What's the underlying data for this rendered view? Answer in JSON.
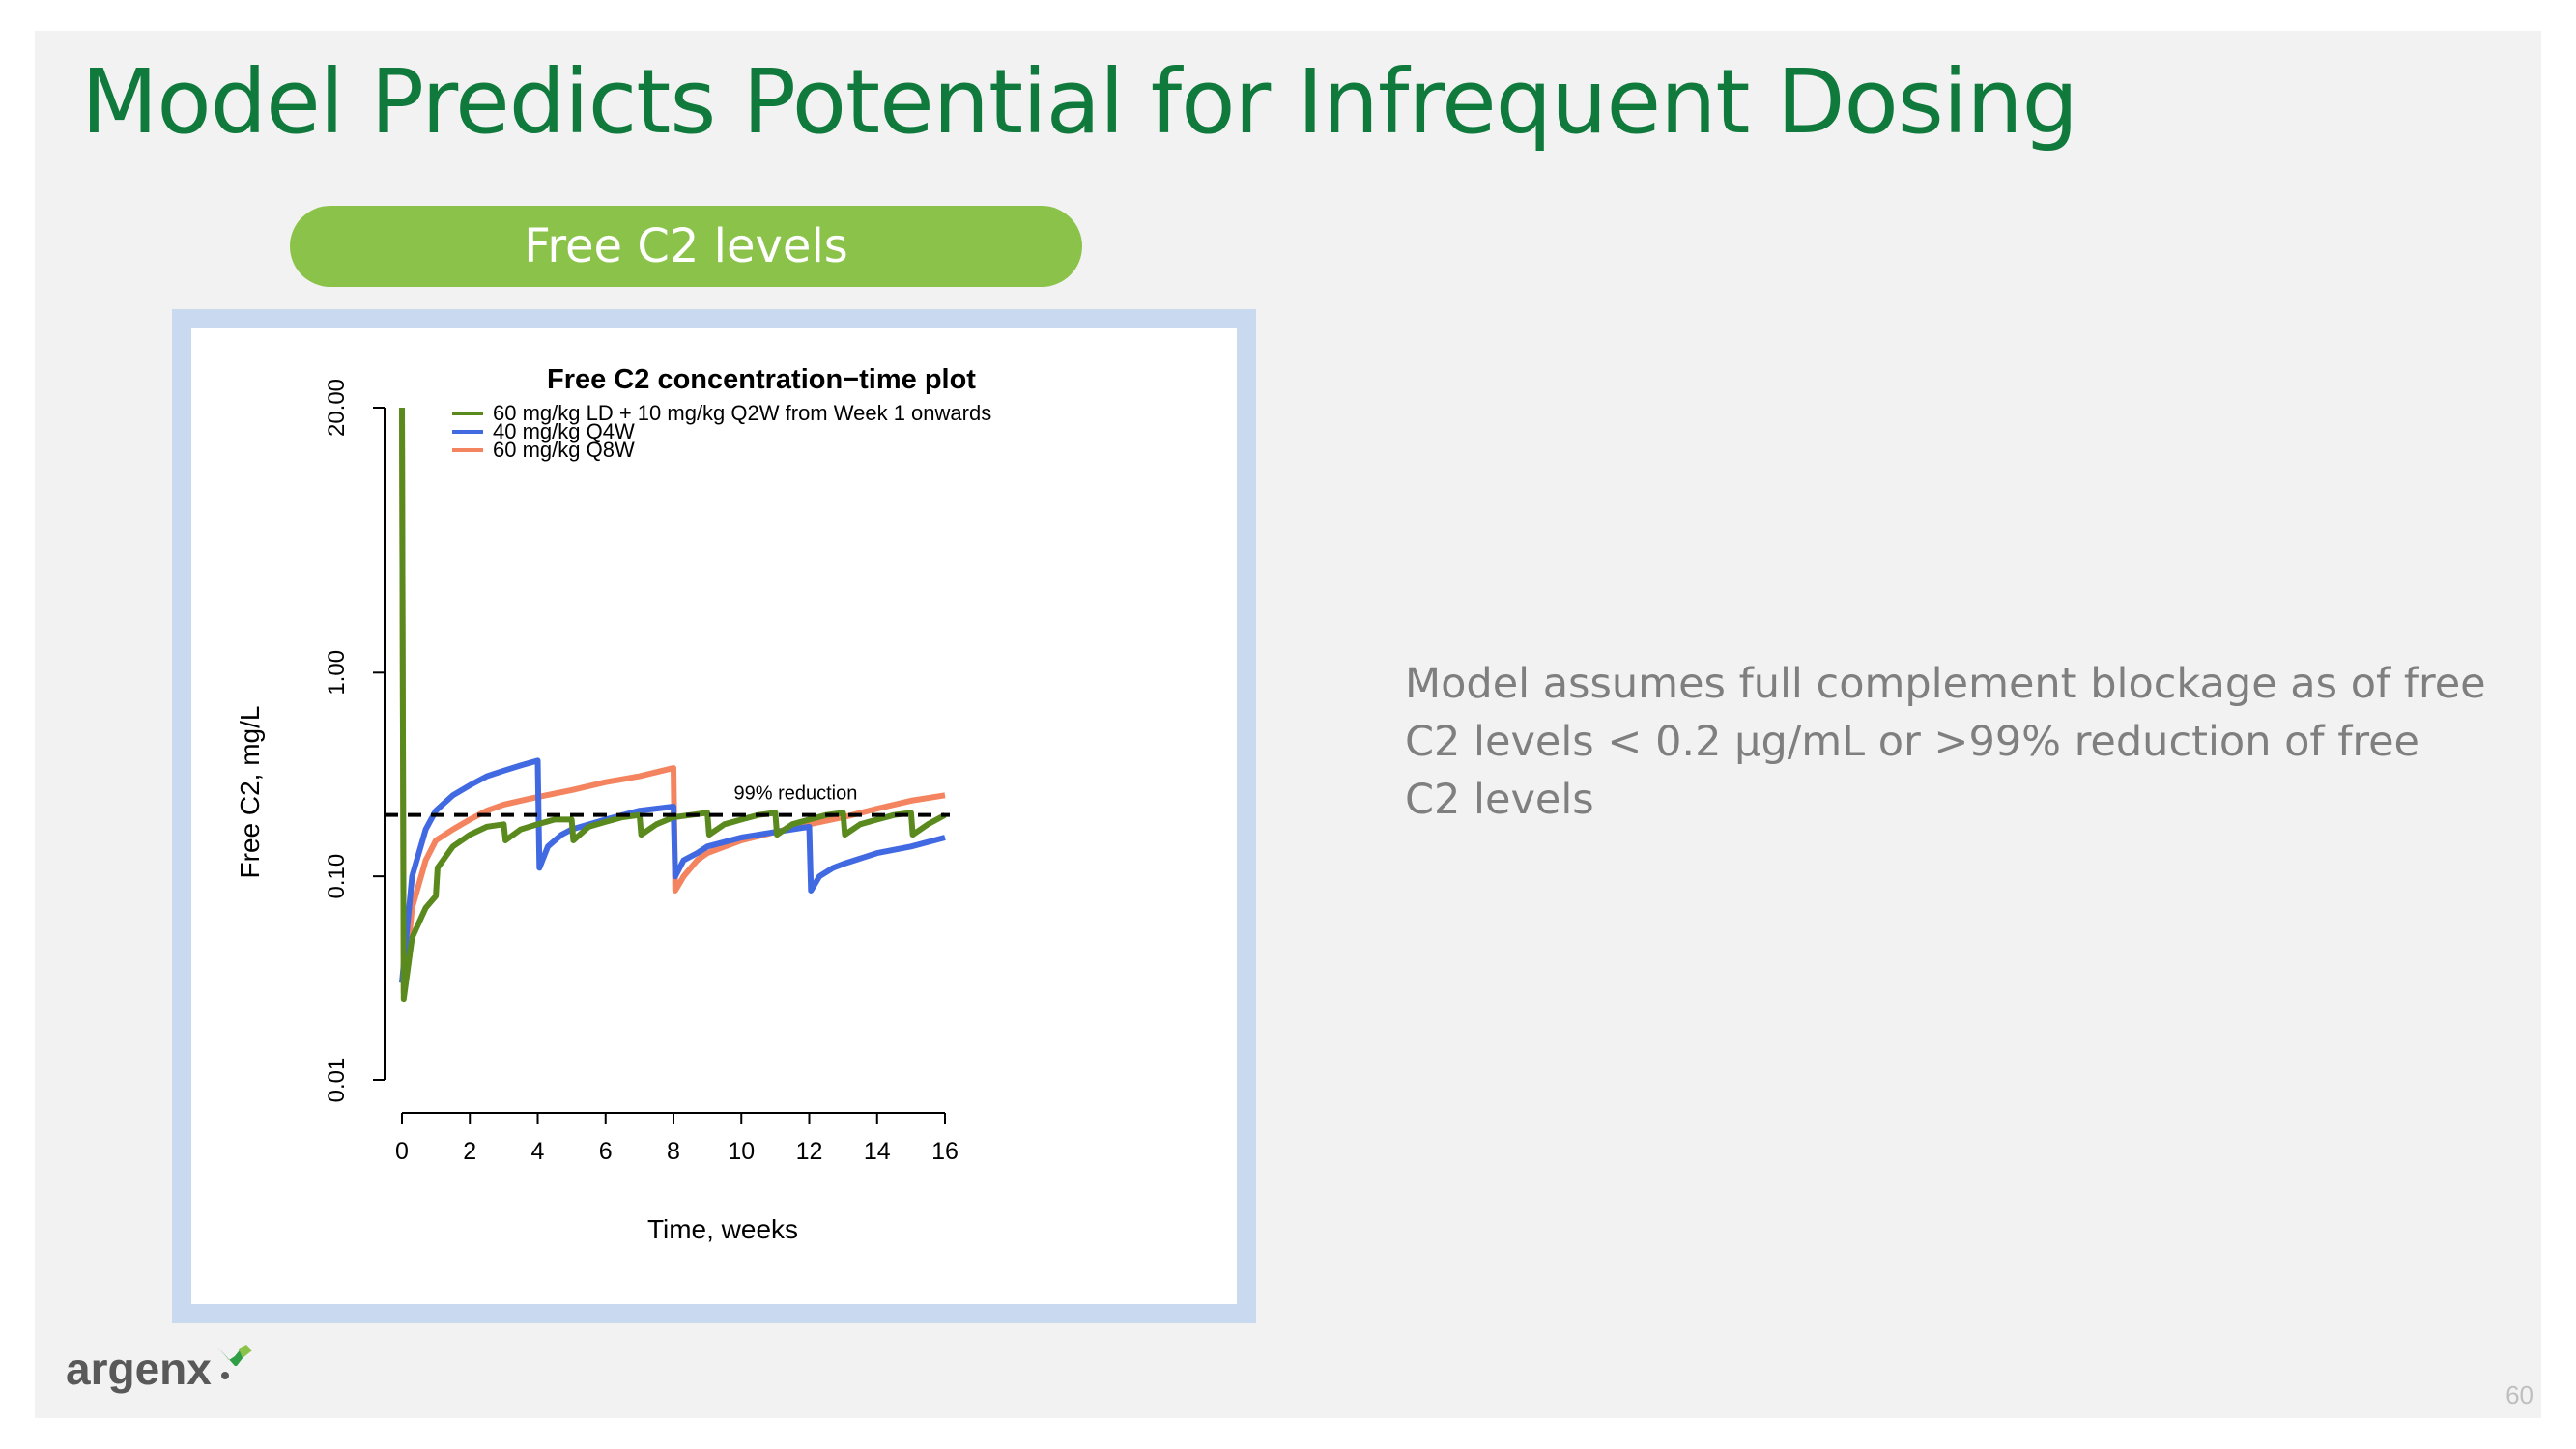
{
  "slide": {
    "title": "Model Predicts Potential for Infrequent Dosing",
    "pill_label": "Free C2 levels",
    "side_text": "Model assumes full complement blockage as of free C2 levels < 0.2 µg/mL or >99% reduction of free C2 levels",
    "logo_text": "argenx",
    "page_number": "60"
  },
  "colors": {
    "title": "#0f7a3c",
    "pill": "#8bc34a",
    "frame": "#c9d9ef",
    "green_series": "#5a8a1e",
    "blue_series": "#4169e1",
    "orange_series": "#f4845f"
  },
  "chart_data": {
    "type": "line",
    "title": "Free C2 concentration−time plot",
    "xlabel": "Time, weeks",
    "ylabel": "Free C2, mg/L",
    "x_ticks": [
      "0",
      "2",
      "4",
      "6",
      "8",
      "10",
      "12",
      "14",
      "16"
    ],
    "y_ticks": [
      "0.01",
      "0.10",
      "1.00",
      "20.00"
    ],
    "y_scale": "log",
    "xlim": [
      0,
      16
    ],
    "ylim": [
      0.01,
      20
    ],
    "legend_position": "top",
    "reference_line": {
      "y": 0.2,
      "label": "99% reduction",
      "style": "dashed"
    },
    "series": [
      {
        "name": "60 mg/kg LD + 10 mg/kg Q2W from Week 1 onwards",
        "color": "#5a8a1e",
        "points": [
          [
            0,
            20
          ],
          [
            0.05,
            0.025
          ],
          [
            0.3,
            0.05
          ],
          [
            0.7,
            0.07
          ],
          [
            1,
            0.08
          ],
          [
            1.05,
            0.11
          ],
          [
            1.5,
            0.14
          ],
          [
            2,
            0.16
          ],
          [
            2.5,
            0.175
          ],
          [
            3,
            0.18
          ],
          [
            3.05,
            0.15
          ],
          [
            3.5,
            0.17
          ],
          [
            4,
            0.18
          ],
          [
            4.5,
            0.19
          ],
          [
            5,
            0.19
          ],
          [
            5.05,
            0.15
          ],
          [
            5.5,
            0.175
          ],
          [
            6,
            0.185
          ],
          [
            6.5,
            0.195
          ],
          [
            7,
            0.2
          ],
          [
            7.05,
            0.16
          ],
          [
            7.5,
            0.18
          ],
          [
            8,
            0.195
          ],
          [
            8.5,
            0.2
          ],
          [
            9,
            0.205
          ],
          [
            9.05,
            0.16
          ],
          [
            9.5,
            0.18
          ],
          [
            10,
            0.19
          ],
          [
            10.5,
            0.2
          ],
          [
            11,
            0.205
          ],
          [
            11.05,
            0.16
          ],
          [
            11.5,
            0.18
          ],
          [
            12,
            0.19
          ],
          [
            12.5,
            0.2
          ],
          [
            13,
            0.205
          ],
          [
            13.05,
            0.16
          ],
          [
            13.5,
            0.18
          ],
          [
            14,
            0.19
          ],
          [
            14.5,
            0.2
          ],
          [
            15,
            0.205
          ],
          [
            15.05,
            0.16
          ],
          [
            15.5,
            0.18
          ],
          [
            16,
            0.2
          ]
        ]
      },
      {
        "name": "40 mg/kg Q4W",
        "color": "#4169e1",
        "points": [
          [
            0,
            0.03
          ],
          [
            0.3,
            0.1
          ],
          [
            0.7,
            0.17
          ],
          [
            1,
            0.21
          ],
          [
            1.5,
            0.25
          ],
          [
            2,
            0.28
          ],
          [
            2.5,
            0.31
          ],
          [
            3,
            0.33
          ],
          [
            3.5,
            0.35
          ],
          [
            4,
            0.37
          ],
          [
            4.05,
            0.11
          ],
          [
            4.3,
            0.14
          ],
          [
            4.7,
            0.16
          ],
          [
            5,
            0.17
          ],
          [
            6,
            0.19
          ],
          [
            7,
            0.21
          ],
          [
            8,
            0.22
          ],
          [
            8.05,
            0.1
          ],
          [
            8.3,
            0.12
          ],
          [
            8.7,
            0.13
          ],
          [
            9,
            0.14
          ],
          [
            10,
            0.155
          ],
          [
            11,
            0.165
          ],
          [
            12,
            0.175
          ],
          [
            12.05,
            0.085
          ],
          [
            12.3,
            0.1
          ],
          [
            12.7,
            0.11
          ],
          [
            13,
            0.115
          ],
          [
            14,
            0.13
          ],
          [
            15,
            0.14
          ],
          [
            16,
            0.155
          ]
        ]
      },
      {
        "name": "60 mg/kg Q8W",
        "color": "#f4845f",
        "points": [
          [
            0,
            20
          ],
          [
            0.05,
            0.027
          ],
          [
            0.3,
            0.07
          ],
          [
            0.7,
            0.12
          ],
          [
            1,
            0.15
          ],
          [
            1.5,
            0.17
          ],
          [
            2,
            0.19
          ],
          [
            2.5,
            0.21
          ],
          [
            3,
            0.225
          ],
          [
            3.5,
            0.235
          ],
          [
            4,
            0.245
          ],
          [
            5,
            0.265
          ],
          [
            6,
            0.29
          ],
          [
            7,
            0.31
          ],
          [
            8,
            0.34
          ],
          [
            8.05,
            0.085
          ],
          [
            8.3,
            0.1
          ],
          [
            8.7,
            0.12
          ],
          [
            9,
            0.13
          ],
          [
            10,
            0.15
          ],
          [
            11,
            0.165
          ],
          [
            12,
            0.18
          ],
          [
            13,
            0.195
          ],
          [
            14,
            0.215
          ],
          [
            15,
            0.235
          ],
          [
            16,
            0.25
          ]
        ]
      }
    ]
  }
}
